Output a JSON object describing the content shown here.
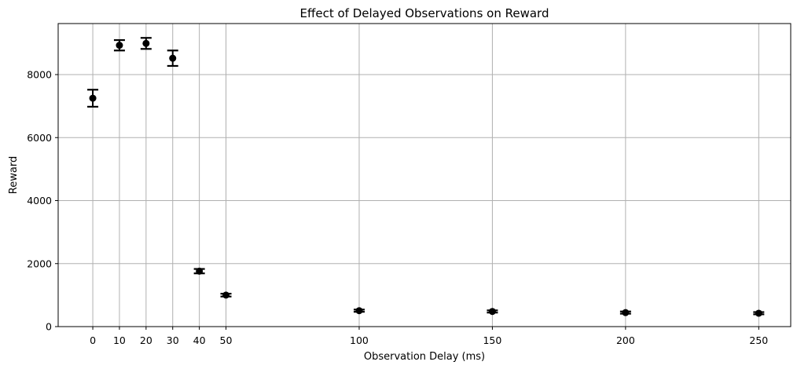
{
  "chart_data": {
    "type": "scatter",
    "title": "Effect of Delayed Observations on Reward",
    "xlabel": "Observation Delay (ms)",
    "ylabel": "Reward",
    "x_ticks": [
      0,
      10,
      20,
      30,
      40,
      50,
      100,
      150,
      200,
      250
    ],
    "x_tick_labels": [
      "0",
      "10",
      "20",
      "30",
      "40",
      "50",
      "100",
      "150",
      "200",
      "250"
    ],
    "y_ticks": [
      0,
      2000,
      4000,
      6000,
      8000
    ],
    "y_tick_labels": [
      "0",
      "2000",
      "4000",
      "6000",
      "8000"
    ],
    "xlim": [
      -13,
      262
    ],
    "ylim": [
      0,
      9620
    ],
    "grid": true,
    "error_bars": true,
    "color": "#000000",
    "grid_color": "#b0b0b0",
    "points": [
      {
        "x": 0,
        "y": 7250,
        "err": 270
      },
      {
        "x": 10,
        "y": 8930,
        "err": 165
      },
      {
        "x": 20,
        "y": 8990,
        "err": 175
      },
      {
        "x": 30,
        "y": 8520,
        "err": 245
      },
      {
        "x": 40,
        "y": 1760,
        "err": 70
      },
      {
        "x": 50,
        "y": 1000,
        "err": 45
      },
      {
        "x": 100,
        "y": 505,
        "err": 35
      },
      {
        "x": 150,
        "y": 480,
        "err": 35
      },
      {
        "x": 200,
        "y": 445,
        "err": 35
      },
      {
        "x": 250,
        "y": 425,
        "err": 35
      }
    ]
  }
}
